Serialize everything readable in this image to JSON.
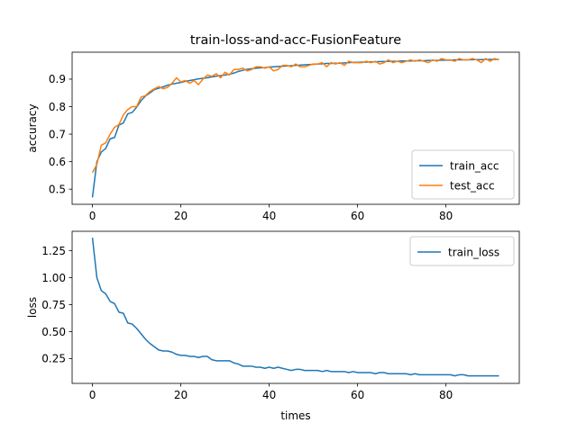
{
  "figure": {
    "title": "train-loss-and-acc-FusionFeature"
  },
  "chart_data": [
    {
      "type": "line",
      "title": "train-loss-and-acc-FusionFeature",
      "xlabel": "",
      "ylabel": "accuracy",
      "xlim": [
        -4.6,
        96.6
      ],
      "ylim": [
        0.445,
        0.998
      ],
      "xticks": [
        0,
        20,
        40,
        60,
        80
      ],
      "yticks": [
        0.5,
        0.6,
        0.7,
        0.8,
        0.9
      ],
      "ytick_labels": [
        "0.5",
        "0.6",
        "0.7",
        "0.8",
        "0.9"
      ],
      "legend": "lower-right",
      "grid": false,
      "series": [
        {
          "name": "train_acc",
          "color": "#1f77b4",
          "values": [
            0.47,
            0.6,
            0.635,
            0.648,
            0.683,
            0.688,
            0.733,
            0.741,
            0.774,
            0.779,
            0.798,
            0.822,
            0.839,
            0.85,
            0.862,
            0.867,
            0.872,
            0.878,
            0.882,
            0.885,
            0.888,
            0.892,
            0.895,
            0.898,
            0.901,
            0.903,
            0.905,
            0.908,
            0.911,
            0.913,
            0.915,
            0.918,
            0.922,
            0.928,
            0.932,
            0.936,
            0.938,
            0.94,
            0.941,
            0.942,
            0.944,
            0.945,
            0.946,
            0.947,
            0.948,
            0.949,
            0.95,
            0.951,
            0.952,
            0.953,
            0.954,
            0.955,
            0.956,
            0.957,
            0.957,
            0.958,
            0.958,
            0.959,
            0.96,
            0.961,
            0.961,
            0.962,
            0.962,
            0.963,
            0.963,
            0.964,
            0.964,
            0.965,
            0.965,
            0.965,
            0.966,
            0.966,
            0.966,
            0.967,
            0.967,
            0.967,
            0.968,
            0.968,
            0.968,
            0.969,
            0.969,
            0.969,
            0.97,
            0.97,
            0.97,
            0.97,
            0.971,
            0.971,
            0.971,
            0.972,
            0.972,
            0.972,
            0.972
          ]
        },
        {
          "name": "test_acc",
          "color": "#ff7f0e",
          "values": [
            0.56,
            0.59,
            0.66,
            0.668,
            0.7,
            0.725,
            0.735,
            0.77,
            0.79,
            0.8,
            0.8,
            0.835,
            0.84,
            0.855,
            0.865,
            0.873,
            0.865,
            0.87,
            0.885,
            0.905,
            0.89,
            0.895,
            0.885,
            0.895,
            0.88,
            0.9,
            0.915,
            0.91,
            0.92,
            0.905,
            0.925,
            0.915,
            0.935,
            0.935,
            0.94,
            0.93,
            0.935,
            0.945,
            0.945,
            0.94,
            0.945,
            0.93,
            0.935,
            0.95,
            0.95,
            0.945,
            0.955,
            0.945,
            0.945,
            0.95,
            0.955,
            0.955,
            0.96,
            0.945,
            0.96,
            0.955,
            0.96,
            0.95,
            0.965,
            0.96,
            0.96,
            0.96,
            0.965,
            0.96,
            0.965,
            0.955,
            0.96,
            0.97,
            0.96,
            0.965,
            0.96,
            0.965,
            0.97,
            0.965,
            0.97,
            0.965,
            0.96,
            0.97,
            0.965,
            0.975,
            0.97,
            0.97,
            0.965,
            0.975,
            0.97,
            0.97,
            0.975,
            0.97,
            0.96,
            0.975,
            0.965,
            0.975,
            0.97
          ]
        }
      ]
    },
    {
      "type": "line",
      "title": "",
      "xlabel": "times",
      "ylabel": "loss",
      "xlim": [
        -4.6,
        96.6
      ],
      "ylim": [
        0.02,
        1.43
      ],
      "xticks": [
        0,
        20,
        40,
        60,
        80
      ],
      "yticks": [
        0.25,
        0.5,
        0.75,
        1.0,
        1.25
      ],
      "ytick_labels": [
        "0.25",
        "0.50",
        "0.75",
        "1.00",
        "1.25"
      ],
      "legend": "top-right",
      "grid": false,
      "series": [
        {
          "name": "train_loss",
          "color": "#1f77b4",
          "values": [
            1.37,
            1.0,
            0.88,
            0.85,
            0.78,
            0.76,
            0.68,
            0.67,
            0.58,
            0.57,
            0.53,
            0.48,
            0.43,
            0.39,
            0.36,
            0.33,
            0.32,
            0.32,
            0.31,
            0.29,
            0.28,
            0.28,
            0.27,
            0.27,
            0.26,
            0.27,
            0.27,
            0.24,
            0.23,
            0.23,
            0.23,
            0.23,
            0.21,
            0.2,
            0.18,
            0.18,
            0.18,
            0.17,
            0.17,
            0.16,
            0.17,
            0.16,
            0.17,
            0.16,
            0.15,
            0.14,
            0.15,
            0.15,
            0.14,
            0.14,
            0.14,
            0.14,
            0.13,
            0.14,
            0.13,
            0.13,
            0.13,
            0.13,
            0.12,
            0.13,
            0.12,
            0.12,
            0.12,
            0.12,
            0.11,
            0.12,
            0.12,
            0.11,
            0.11,
            0.11,
            0.11,
            0.11,
            0.1,
            0.11,
            0.1,
            0.1,
            0.1,
            0.1,
            0.1,
            0.1,
            0.1,
            0.1,
            0.09,
            0.1,
            0.1,
            0.09,
            0.09,
            0.09,
            0.09,
            0.09,
            0.09,
            0.09,
            0.09
          ]
        }
      ]
    }
  ]
}
